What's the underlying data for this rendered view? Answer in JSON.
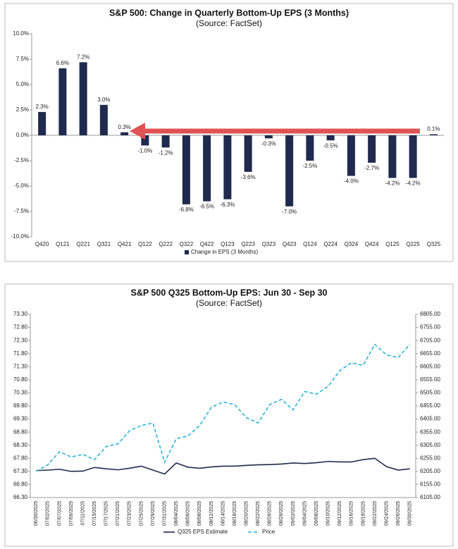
{
  "chart_data": [
    {
      "type": "bar",
      "title": "S&P 500: Change in Quarterly Bottom-Up EPS (3 Months)",
      "subtitle": "(Source: FactSet)",
      "categories": [
        "Q420",
        "Q121",
        "Q221",
        "Q321",
        "Q421",
        "Q122",
        "Q222",
        "Q322",
        "Q422",
        "Q123",
        "Q223",
        "Q323",
        "Q423",
        "Q124",
        "Q224",
        "Q324",
        "Q424",
        "Q125",
        "Q225",
        "Q325"
      ],
      "series": [
        {
          "name": "Change in EPS (3 Months)",
          "color": "#1f2a4e",
          "values": [
            2.3,
            6.6,
            7.2,
            3.0,
            0.3,
            -1.0,
            -1.2,
            -6.8,
            -6.5,
            -6.3,
            -3.6,
            -0.3,
            -7.0,
            -2.5,
            -0.5,
            -4.0,
            -2.7,
            -4.2,
            -4.2,
            0.1
          ],
          "value_labels": [
            "2.3%",
            "6.6%",
            "7.2%",
            "3.0%",
            "0.3%",
            "-1.0%",
            "-1.2%",
            "-6.8%",
            "-6.5%",
            "-6.3%",
            "-3.6%",
            "-0.3%",
            "-7.0%",
            "-2.5%",
            "-0.5%",
            "-4.0%",
            "-2.7%",
            "-4.2%",
            "-4.2%",
            "0.1%"
          ]
        }
      ],
      "ylim": [
        -10,
        10
      ],
      "yticks": [
        {
          "value": -10,
          "label": "-10.0%"
        },
        {
          "value": -7.5,
          "label": "-7.5%"
        },
        {
          "value": -5,
          "label": "-5.0%"
        },
        {
          "value": -2.5,
          "label": "-2.5%"
        },
        {
          "value": 0,
          "label": "0.0%"
        },
        {
          "value": 2.5,
          "label": "2.5%"
        },
        {
          "value": 5,
          "label": "5.0%"
        },
        {
          "value": 7.5,
          "label": "7.5%"
        },
        {
          "value": 10,
          "label": "10.0%"
        }
      ],
      "grid": false,
      "legend": "bottom"
    },
    {
      "type": "line",
      "title": "S&P 500 Q325 Bottom-Up EPS: Jun 30 - Sep 30",
      "subtitle": "(Source: FactSet)",
      "x": [
        "06/30/2025",
        "07/02/2025",
        "07/07/2025",
        "07/09/2025",
        "07/11/2025",
        "07/15/2025",
        "07/17/2025",
        "07/21/2025",
        "07/23/2025",
        "07/25/2025",
        "07/29/2025",
        "07/31/2025",
        "08/04/2025",
        "08/06/2025",
        "08/08/2025",
        "08/12/2025",
        "08/14/2025",
        "08/18/2025",
        "08/20/2025",
        "08/22/2025",
        "08/26/2025",
        "08/28/2025",
        "09/02/2025",
        "09/04/2025",
        "09/08/2025",
        "09/10/2025",
        "09/12/2025",
        "09/16/2025",
        "09/18/2025",
        "09/22/2025",
        "09/24/2025",
        "09/26/2025",
        "09/30/2025"
      ],
      "series": [
        {
          "name": "Q325 EPS Estimate",
          "color": "#1f2a4e",
          "line_style": "solid",
          "values": [
            67.33,
            67.35,
            67.38,
            67.3,
            67.31,
            67.45,
            67.4,
            67.36,
            67.42,
            67.5,
            67.35,
            67.2,
            67.62,
            67.46,
            67.42,
            67.47,
            67.5,
            67.5,
            67.53,
            67.55,
            67.56,
            67.58,
            67.62,
            67.6,
            67.63,
            67.68,
            67.66,
            67.66,
            67.75,
            67.8,
            67.48,
            67.35,
            67.4
          ]
        },
        {
          "name": "Price",
          "color": "#2bb5d8",
          "line_style": "dashed",
          "axis": "y2",
          "values": [
            6205,
            6230,
            6280,
            6260,
            6270,
            6250,
            6300,
            6310,
            6360,
            6380,
            6390,
            6240,
            6330,
            6340,
            6380,
            6450,
            6470,
            6460,
            6410,
            6390,
            6460,
            6480,
            6440,
            6510,
            6500,
            6530,
            6590,
            6620,
            6610,
            6690,
            6650,
            6640,
            6690
          ]
        }
      ],
      "ylim": [
        66.3,
        73.3
      ],
      "yticks": [
        {
          "value": 66.3,
          "label": "66.30"
        },
        {
          "value": 66.8,
          "label": "66.80"
        },
        {
          "value": 67.3,
          "label": "67.30"
        },
        {
          "value": 67.8,
          "label": "67.80"
        },
        {
          "value": 68.3,
          "label": "68.30"
        },
        {
          "value": 68.8,
          "label": "68.80"
        },
        {
          "value": 69.3,
          "label": "69.30"
        },
        {
          "value": 69.8,
          "label": "69.80"
        },
        {
          "value": 70.3,
          "label": "70.30"
        },
        {
          "value": 70.8,
          "label": "70.80"
        },
        {
          "value": 71.3,
          "label": "71.30"
        },
        {
          "value": 71.8,
          "label": "71.80"
        },
        {
          "value": 72.3,
          "label": "72.30"
        },
        {
          "value": 72.8,
          "label": "72.80"
        },
        {
          "value": 73.3,
          "label": "73.30"
        }
      ],
      "y2lim": [
        6105,
        6805
      ],
      "y2ticks": [
        {
          "value": 6105,
          "label": "6105.00"
        },
        {
          "value": 6155,
          "label": "6155.00"
        },
        {
          "value": 6205,
          "label": "6205.00"
        },
        {
          "value": 6255,
          "label": "6255.00"
        },
        {
          "value": 6305,
          "label": "6305.00"
        },
        {
          "value": 6355,
          "label": "6355.00"
        },
        {
          "value": 6405,
          "label": "6405.00"
        },
        {
          "value": 6455,
          "label": "6455.00"
        },
        {
          "value": 6505,
          "label": "6505.00"
        },
        {
          "value": 6555,
          "label": "6555.00"
        },
        {
          "value": 6605,
          "label": "6605.00"
        },
        {
          "value": 6655,
          "label": "6655.00"
        },
        {
          "value": 6705,
          "label": "6705.00"
        },
        {
          "value": 6755,
          "label": "6755.00"
        },
        {
          "value": 6805,
          "label": "6805.00"
        }
      ],
      "grid": false,
      "legend": "bottom"
    }
  ]
}
